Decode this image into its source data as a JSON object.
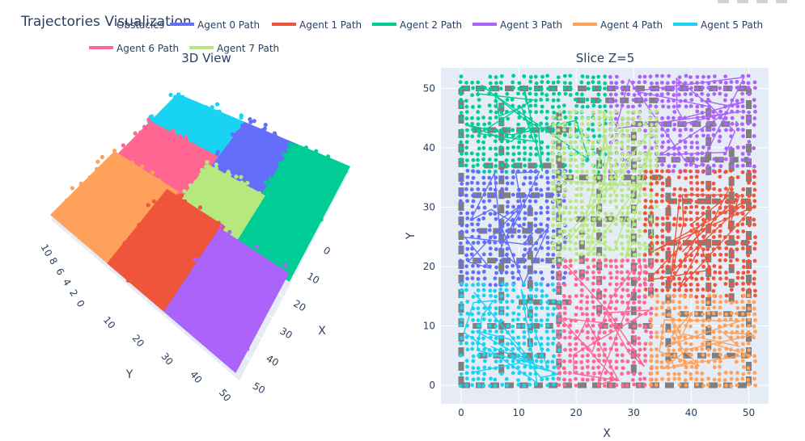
{
  "title": "Trajectories Visualization",
  "legend": [
    {
      "name": "Obstacles",
      "color": "#7f7f7f"
    },
    {
      "name": "Agent 0 Path",
      "color": "#636efa"
    },
    {
      "name": "Agent 1 Path",
      "color": "#ef553b"
    },
    {
      "name": "Agent 2 Path",
      "color": "#00cc96"
    },
    {
      "name": "Agent 3 Path",
      "color": "#ab63fa"
    },
    {
      "name": "Agent 4 Path",
      "color": "#ffa15a"
    },
    {
      "name": "Agent 5 Path",
      "color": "#19d3f3"
    },
    {
      "name": "Agent 6 Path",
      "color": "#ff6692"
    },
    {
      "name": "Agent 7 Path",
      "color": "#b6e880"
    }
  ],
  "chart_data": [
    {
      "type": "scatter",
      "title": "3D View",
      "xlabel": "X",
      "ylabel": "Y",
      "x_ticks": [
        "0",
        "10",
        "20",
        "30",
        "40",
        "50"
      ],
      "y_ticks": [
        "10",
        "20",
        "30",
        "40",
        "50"
      ],
      "z_ticks": [
        "10",
        "8",
        "6",
        "4",
        "2",
        "0"
      ],
      "series": [
        {
          "name": "Agent 5 Path",
          "color": "#19d3f3"
        },
        {
          "name": "Agent 0 Path",
          "color": "#636efa"
        },
        {
          "name": "Agent 6 Path",
          "color": "#ff6692"
        },
        {
          "name": "Agent 2 Path",
          "color": "#00cc96"
        },
        {
          "name": "Agent 7 Path",
          "color": "#b6e880"
        },
        {
          "name": "Agent 4 Path",
          "color": "#ffa15a"
        },
        {
          "name": "Agent 1 Path",
          "color": "#ef553b"
        },
        {
          "name": "Agent 3 Path",
          "color": "#ab63fa"
        }
      ]
    },
    {
      "type": "scatter",
      "title": "Slice Z=5",
      "xlabel": "X",
      "ylabel": "Y",
      "xlim": [
        -2,
        53
      ],
      "ylim": [
        -2,
        52
      ],
      "x_ticks": [
        0,
        10,
        20,
        30,
        40,
        50
      ],
      "y_ticks": [
        0,
        10,
        20,
        30,
        40,
        50
      ],
      "regions": [
        {
          "name": "Agent 2 Path",
          "color": "#00cc96",
          "x": [
            0,
            25
          ],
          "y": [
            36,
            52
          ]
        },
        {
          "name": "Agent 3 Path",
          "color": "#ab63fa",
          "x": [
            26,
            51
          ],
          "y": [
            36,
            52
          ]
        },
        {
          "name": "Agent 0 Path",
          "color": "#636efa",
          "x": [
            0,
            18
          ],
          "y": [
            17,
            36
          ]
        },
        {
          "name": "Agent 7 Path",
          "color": "#b6e880",
          "x": [
            16,
            34
          ],
          "y": [
            21,
            46
          ]
        },
        {
          "name": "Agent 1 Path",
          "color": "#ef553b",
          "x": [
            32,
            51
          ],
          "y": [
            15,
            36
          ]
        },
        {
          "name": "Agent 5 Path",
          "color": "#19d3f3",
          "x": [
            0,
            17
          ],
          "y": [
            0,
            17
          ]
        },
        {
          "name": "Agent 6 Path",
          "color": "#ff6692",
          "x": [
            17,
            33
          ],
          "y": [
            0,
            21
          ]
        },
        {
          "name": "Agent 4 Path",
          "color": "#ffa15a",
          "x": [
            33,
            51
          ],
          "y": [
            0,
            15
          ]
        }
      ],
      "obstacle_color": "#7f7f7f"
    }
  ]
}
